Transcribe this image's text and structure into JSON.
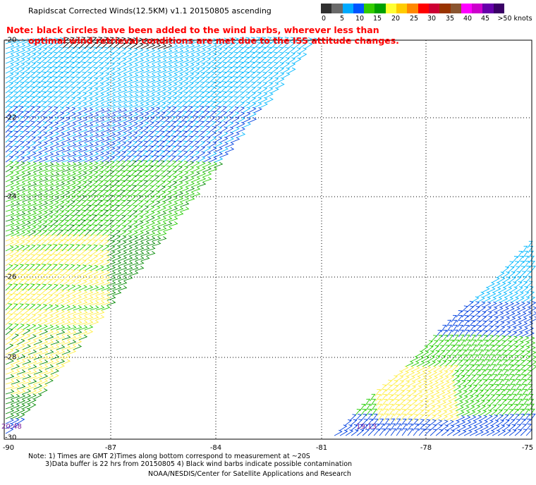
{
  "header": {
    "title": "Rapidscat Corrected Winds(12.5KM) v1.1 20150805 ascending",
    "note_line1": "Note: black circles have been added to the wind barbs, wherever less than",
    "note_line2": "optimal wind retrieval conditions are met due to the ISS attitude changes."
  },
  "legend": {
    "labels": [
      "0",
      "5",
      "10",
      "15",
      "20",
      "25",
      "30",
      "35",
      "40",
      "45",
      ">50 knots"
    ],
    "colors": [
      "#303030",
      "#6a6a6a",
      "#00aaff",
      "#0055ff",
      "#33cc00",
      "#00a000",
      "#ffff33",
      "#ffcc00",
      "#ff8800",
      "#ff0000",
      "#cc0033",
      "#993300",
      "#8a5530",
      "#ff00ff",
      "#cc00cc",
      "#6600aa",
      "#3a0066"
    ]
  },
  "map": {
    "lat_labels": [
      "-20",
      "-22",
      "-24",
      "-26",
      "-28",
      "-30"
    ],
    "lon_labels": [
      "-90",
      "-87",
      "-84",
      "-81",
      "-78",
      "-75"
    ],
    "swath_times": [
      "20:48",
      "19:13"
    ],
    "barb_colors": {
      "black": "#000000",
      "cyan": "#00b8ff",
      "blue": "#0040e0",
      "green": "#22cc00",
      "dark_green": "#008800",
      "yellow": "#ffee44",
      "orange": "#ffbb00",
      "brown": "#cc7722"
    }
  },
  "footer": {
    "line1": "Note: 1) Times are GMT 2)Times along bottom correspond to measurement at ~20S",
    "line2": "3)Data buffer is 22 hrs from 20150805 4) Black wind barbs indicate possible contamination",
    "line3": "NOAA/NESDIS/Center for Satellite Applications and Research"
  }
}
